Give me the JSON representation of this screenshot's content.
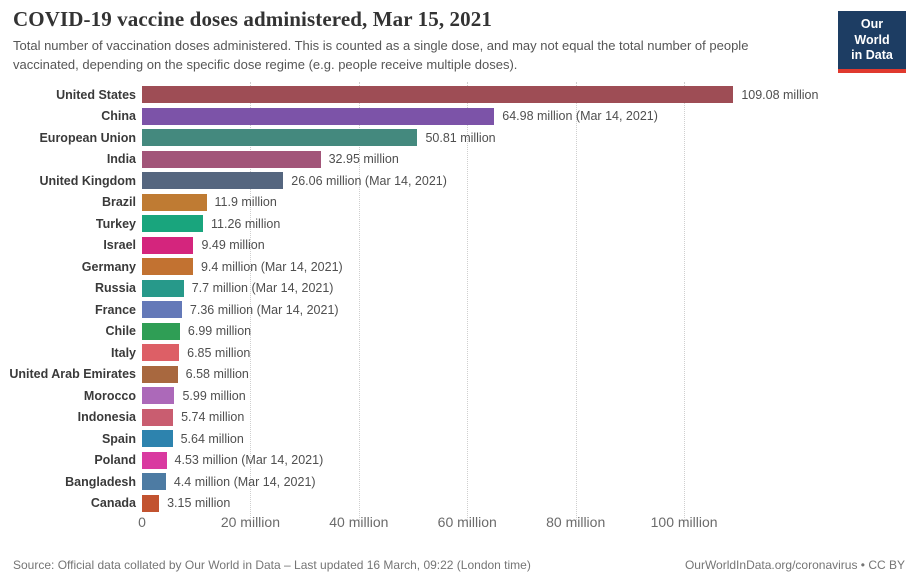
{
  "header": {
    "title": "COVID-19 vaccine doses administered, Mar 15, 2021",
    "subtitle": "Total number of vaccination doses administered. This is counted as a single dose, and may not equal the total number of people vaccinated, depending on the specific dose regime (e.g. people receive multiple doses)."
  },
  "logo": {
    "line1": "Our World",
    "line2": "in Data",
    "bg_color": "#1d3d63",
    "underline_color": "#e0392e"
  },
  "chart_data": {
    "type": "bar",
    "orientation": "horizontal",
    "grid": "vertical-dotted",
    "xlim": [
      0,
      143.7
    ],
    "x_ticks": [
      0,
      20,
      40,
      60,
      80,
      100
    ],
    "x_tick_labels": [
      "0",
      "20 million",
      "40 million",
      "60 million",
      "80 million",
      "100 million"
    ],
    "categories": [
      "United States",
      "China",
      "European Union",
      "India",
      "United Kingdom",
      "Brazil",
      "Turkey",
      "Israel",
      "Germany",
      "Russia",
      "France",
      "Chile",
      "Italy",
      "United Arab Emirates",
      "Morocco",
      "Indonesia",
      "Spain",
      "Poland",
      "Bangladesh",
      "Canada"
    ],
    "values": [
      109.08,
      64.98,
      50.81,
      32.95,
      26.06,
      11.9,
      11.26,
      9.49,
      9.4,
      7.7,
      7.36,
      6.99,
      6.85,
      6.58,
      5.99,
      5.74,
      5.64,
      4.53,
      4.4,
      3.15
    ],
    "value_labels": [
      "109.08 million",
      "64.98 million (Mar 14, 2021)",
      "50.81 million",
      "32.95 million",
      "26.06 million (Mar 14, 2021)",
      "11.9 million",
      "11.26 million",
      "9.49 million",
      "9.4 million (Mar 14, 2021)",
      "7.7 million (Mar 14, 2021)",
      "7.36 million (Mar 14, 2021)",
      "6.99 million",
      "6.85 million",
      "6.58 million",
      "5.99 million",
      "5.74 million",
      "5.64 million",
      "4.53 million (Mar 14, 2021)",
      "4.4 million (Mar 14, 2021)",
      "3.15 million"
    ],
    "bar_colors": [
      "#9e4d55",
      "#7c53a8",
      "#44897e",
      "#a25579",
      "#55667f",
      "#bf7b33",
      "#19a57d",
      "#d4257d",
      "#c27231",
      "#27998a",
      "#6479b8",
      "#2f9e55",
      "#dd5f66",
      "#a8683f",
      "#ac69b9",
      "#c95d70",
      "#2d83ae",
      "#d93aa0",
      "#4d7ba3",
      "#c25330"
    ]
  },
  "footer": {
    "source": "Source: Official data collated by Our World in Data – Last updated 16 March, 09:22 (London time)",
    "link": "OurWorldInData.org/coronavirus • CC BY"
  }
}
